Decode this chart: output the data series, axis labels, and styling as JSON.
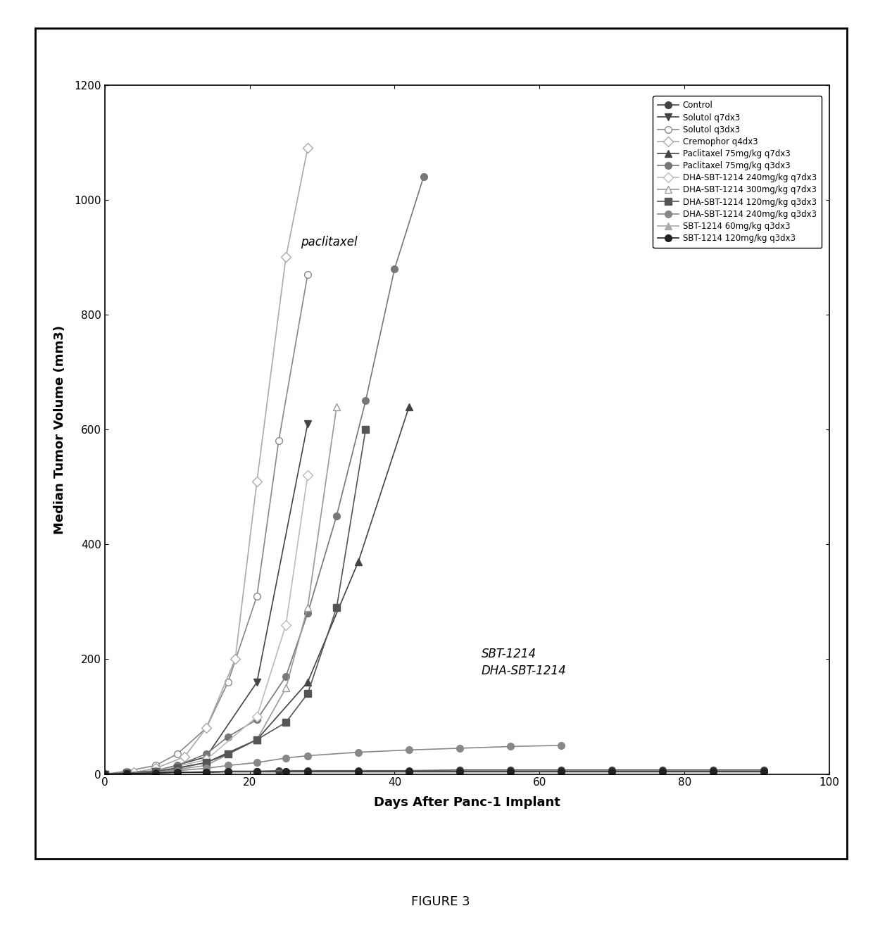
{
  "title": "FIGURE 3",
  "ylabel": "Median Tumor Volume (mm3)",
  "xlabel": "Days After Panc-1 Implant",
  "ylim": [
    0,
    1200
  ],
  "xlim": [
    0,
    100
  ],
  "yticks": [
    0,
    200,
    400,
    600,
    800,
    1000,
    1200
  ],
  "xticks": [
    0,
    20,
    40,
    60,
    80,
    100
  ],
  "annotation_paclitaxel": "paclitaxel",
  "annotation_sbt": "SBT-1214\nDHA-SBT-1214",
  "ann_pac_x": 27,
  "ann_pac_y": 915,
  "ann_sbt_x": 52,
  "ann_sbt_y": 220,
  "series": [
    {
      "label": "Control",
      "x": [
        0,
        3,
        7,
        10,
        14,
        17,
        21,
        24,
        28,
        35,
        42,
        49,
        56,
        63,
        70,
        77,
        84,
        91
      ],
      "y": [
        0,
        1,
        2,
        3,
        4,
        5,
        5,
        6,
        6,
        6,
        6,
        7,
        7,
        7,
        7,
        7,
        7,
        7
      ],
      "marker": "o",
      "color": "#444444",
      "mfc": "#444444",
      "linestyle": "-",
      "lw": 1.2
    },
    {
      "label": "Solutol q7dx3",
      "x": [
        0,
        7,
        14,
        21,
        28
      ],
      "y": [
        0,
        5,
        30,
        160,
        610
      ],
      "marker": "v",
      "color": "#444444",
      "mfc": "#444444",
      "linestyle": "-",
      "lw": 1.2
    },
    {
      "label": "Solutol q3dx3",
      "x": [
        0,
        3,
        7,
        10,
        14,
        17,
        21,
        24,
        28
      ],
      "y": [
        0,
        5,
        15,
        35,
        80,
        160,
        310,
        580,
        870
      ],
      "marker": "o",
      "color": "#888888",
      "mfc": "white",
      "linestyle": "-",
      "lw": 1.2
    },
    {
      "label": "Cremophor q4dx3",
      "x": [
        0,
        4,
        7,
        11,
        14,
        18,
        21,
        25,
        28
      ],
      "y": [
        0,
        3,
        10,
        30,
        80,
        200,
        510,
        900,
        1090
      ],
      "marker": "D",
      "color": "#aaaaaa",
      "mfc": "white",
      "linestyle": "-",
      "lw": 1.2
    },
    {
      "label": "Paclitaxel 75mg/kg q7dx3",
      "x": [
        0,
        7,
        14,
        21,
        28,
        35,
        42
      ],
      "y": [
        0,
        4,
        20,
        60,
        160,
        370,
        640
      ],
      "marker": "^",
      "color": "#444444",
      "mfc": "#444444",
      "linestyle": "-",
      "lw": 1.2
    },
    {
      "label": "Paclitaxel 75mg/kg q3dx3",
      "x": [
        0,
        3,
        7,
        10,
        14,
        17,
        21,
        25,
        28,
        32,
        36,
        40,
        44
      ],
      "y": [
        0,
        2,
        6,
        15,
        35,
        65,
        95,
        170,
        280,
        450,
        650,
        880,
        1040
      ],
      "marker": "o",
      "color": "#777777",
      "mfc": "#777777",
      "linestyle": "-",
      "lw": 1.2
    },
    {
      "label": "DHA-SBT-1214 240mg/kg q7dx3",
      "x": [
        0,
        7,
        14,
        21,
        25,
        28
      ],
      "y": [
        0,
        5,
        25,
        100,
        260,
        520
      ],
      "marker": "D",
      "color": "#bbbbbb",
      "mfc": "white",
      "linestyle": "-",
      "lw": 1.2
    },
    {
      "label": "DHA-SBT-1214 300mg/kg q7dx3",
      "x": [
        0,
        7,
        14,
        21,
        25,
        28,
        32
      ],
      "y": [
        0,
        3,
        15,
        60,
        150,
        290,
        640
      ],
      "marker": "^",
      "color": "#999999",
      "mfc": "white",
      "linestyle": "-",
      "lw": 1.2
    },
    {
      "label": "DHA-SBT-1214 120mg/kg q3dx3",
      "x": [
        0,
        3,
        7,
        10,
        14,
        17,
        21,
        25,
        28,
        32,
        36
      ],
      "y": [
        0,
        2,
        5,
        10,
        20,
        35,
        60,
        90,
        140,
        290,
        600
      ],
      "marker": "s",
      "color": "#555555",
      "mfc": "#555555",
      "linestyle": "-",
      "lw": 1.2
    },
    {
      "label": "DHA-SBT-1214 240mg/kg q3dx3",
      "x": [
        0,
        3,
        7,
        10,
        14,
        17,
        21,
        25,
        28,
        35,
        42,
        49,
        56,
        63
      ],
      "y": [
        0,
        1,
        3,
        6,
        10,
        15,
        20,
        28,
        32,
        38,
        42,
        45,
        48,
        50
      ],
      "marker": "o",
      "color": "#888888",
      "mfc": "#888888",
      "linestyle": "-",
      "lw": 1.2
    },
    {
      "label": "SBT-1214 60mg/kg q3dx3",
      "x": [
        0,
        3,
        7,
        10,
        14,
        17,
        21,
        25,
        28,
        35,
        42,
        49,
        56,
        63,
        70,
        77,
        84,
        91
      ],
      "y": [
        0,
        1,
        2,
        3,
        4,
        5,
        5,
        5,
        5,
        5,
        5,
        5,
        5,
        5,
        5,
        5,
        5,
        5
      ],
      "marker": "^",
      "color": "#aaaaaa",
      "mfc": "#aaaaaa",
      "linestyle": "-",
      "lw": 1.2
    },
    {
      "label": "SBT-1214 120mg/kg q3dx3",
      "x": [
        0,
        3,
        7,
        10,
        14,
        17,
        21,
        25,
        28,
        35,
        42,
        49,
        56,
        63,
        70,
        77,
        84,
        91
      ],
      "y": [
        0,
        1,
        2,
        3,
        3,
        4,
        4,
        4,
        4,
        4,
        4,
        4,
        4,
        4,
        4,
        4,
        4,
        4
      ],
      "marker": "o",
      "color": "#222222",
      "mfc": "#222222",
      "linestyle": "-",
      "lw": 1.2
    }
  ]
}
